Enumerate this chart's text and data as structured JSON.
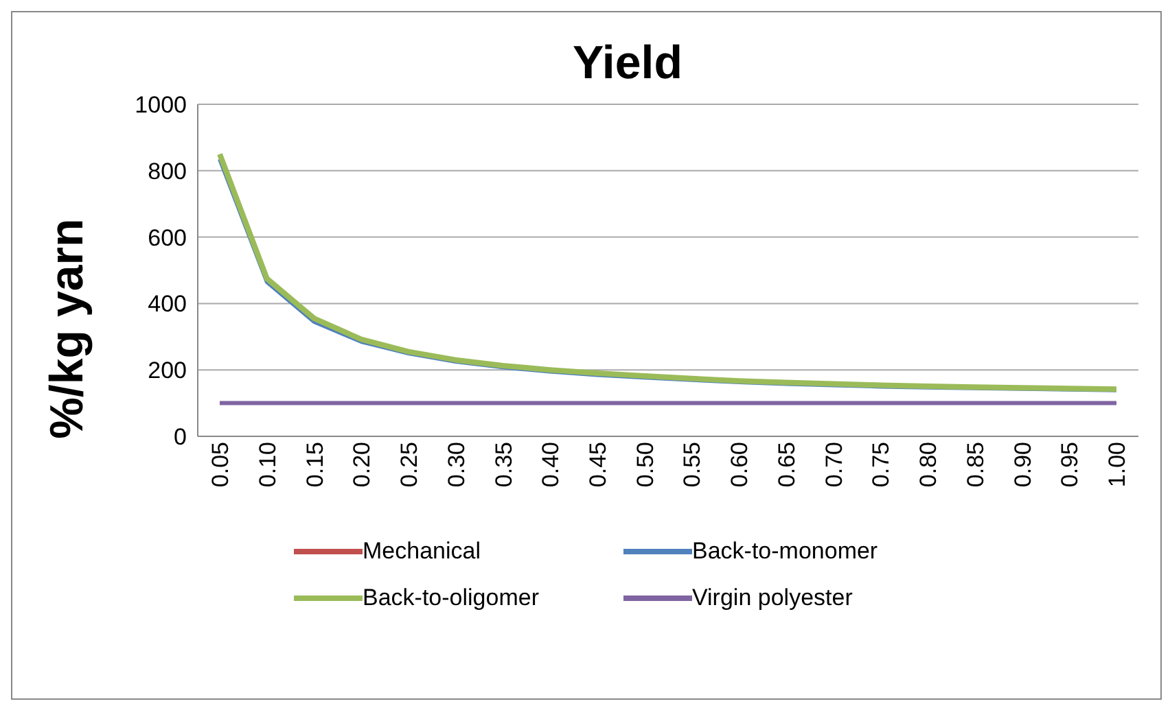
{
  "chart_data": {
    "type": "line",
    "title": "Yield",
    "ylabel": "%/kg yarn",
    "categories": [
      "0.05",
      "0.10",
      "0.15",
      "0.20",
      "0.25",
      "0.30",
      "0.35",
      "0.40",
      "0.45",
      "0.50",
      "0.55",
      "0.60",
      "0.65",
      "0.70",
      "0.75",
      "0.80",
      "0.85",
      "0.90",
      "0.95",
      "1.00"
    ],
    "series": [
      {
        "name": "Mechanical",
        "color": "#c0504d",
        "values": [
          null,
          null,
          null,
          null,
          null,
          null,
          null,
          null,
          null,
          null,
          null,
          null,
          null,
          null,
          null,
          null,
          null,
          null,
          null,
          null
        ]
      },
      {
        "name": "Back-to-monomer",
        "color": "#4f81bd",
        "values": [
          835,
          465,
          345,
          285,
          250,
          225,
          208,
          195,
          185,
          177,
          170,
          163,
          158,
          154,
          150,
          147,
          145,
          143,
          141,
          139
        ]
      },
      {
        "name": "Back-to-oligomer",
        "color": "#9bbb59",
        "values": [
          850,
          475,
          355,
          292,
          255,
          230,
          213,
          200,
          190,
          182,
          174,
          167,
          162,
          158,
          154,
          151,
          148,
          146,
          144,
          142
        ]
      },
      {
        "name": "Virgin polyester",
        "color": "#8064a2",
        "values": [
          100,
          100,
          100,
          100,
          100,
          100,
          100,
          100,
          100,
          100,
          100,
          100,
          100,
          100,
          100,
          100,
          100,
          100,
          100,
          100
        ]
      }
    ],
    "ylim": [
      0,
      1000
    ],
    "yticks": [
      0,
      200,
      400,
      600,
      800,
      1000
    ],
    "grid": "y",
    "legend": "bottom",
    "marker": "none",
    "line_style": "solid"
  }
}
